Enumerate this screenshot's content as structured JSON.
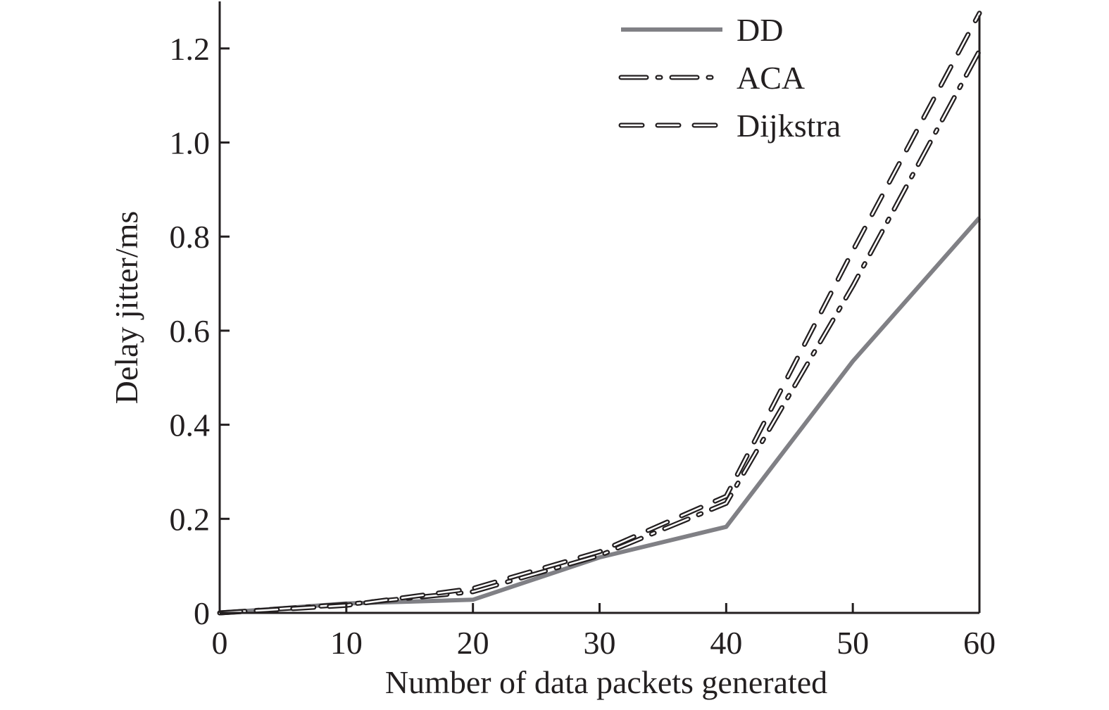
{
  "chart_data": {
    "type": "line",
    "title": "",
    "xlabel": "Number of data packets generated",
    "ylabel": "Delay jitter/ms",
    "xlim": [
      0,
      60
    ],
    "ylim": [
      0,
      1.3
    ],
    "xticks": [
      0,
      10,
      20,
      30,
      40,
      50,
      60
    ],
    "xtick_labels": [
      "0",
      "10",
      "20",
      "30",
      "40",
      "50",
      "60"
    ],
    "yticks": [
      0,
      0.2,
      0.4,
      0.6,
      0.8,
      1.0,
      1.2
    ],
    "ytick_labels": [
      "0",
      "0.2",
      "0.4",
      "0.6",
      "0.8",
      "1.0",
      "1.2"
    ],
    "grid": false,
    "legend_position": "top-right",
    "x": [
      0,
      10,
      20,
      30,
      40,
      50,
      60
    ],
    "series": [
      {
        "name": "DD",
        "values": [
          0,
          0.02,
          0.028,
          0.118,
          0.183,
          0.535,
          0.84
        ],
        "style": "solid",
        "color": "#808085"
      },
      {
        "name": "ACA",
        "values": [
          0,
          0.018,
          0.045,
          0.122,
          0.233,
          0.695,
          1.195
        ],
        "style": "dash-dot",
        "color": "#231f20"
      },
      {
        "name": "Dijkstra",
        "values": [
          0,
          0.016,
          0.052,
          0.13,
          0.248,
          0.77,
          1.275
        ],
        "style": "dashed",
        "color": "#231f20"
      }
    ]
  }
}
